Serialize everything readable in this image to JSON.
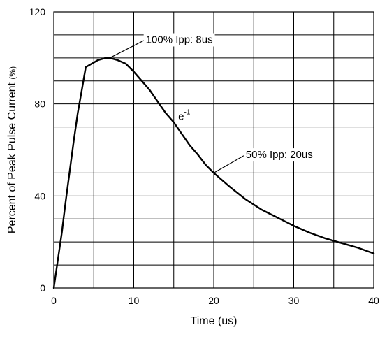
{
  "chart_data": {
    "type": "line",
    "xlabel": "Time (us)",
    "ylabel": "Percent of Peak Pulse Current",
    "ylabel_unit": "(%)",
    "xlim": [
      0,
      40
    ],
    "ylim": [
      0,
      120
    ],
    "xticks": [
      0,
      10,
      20,
      30,
      40
    ],
    "yticks": [
      0,
      40,
      80,
      120
    ],
    "grid": true,
    "x_grid_step": 5,
    "y_grid_step": 10,
    "series": [
      {
        "x": [
          0,
          0.5,
          1,
          1.5,
          2,
          2.5,
          3,
          3.5,
          4,
          4.5,
          5,
          5.5,
          6,
          6.5,
          7,
          7.5,
          8,
          9,
          10,
          11,
          12,
          13,
          14,
          15,
          16,
          17,
          18,
          19,
          20,
          22,
          24,
          26,
          28,
          30,
          32,
          34,
          36,
          38,
          40
        ],
        "y": [
          0,
          12,
          24,
          38,
          51,
          64,
          76,
          86,
          96,
          97,
          98,
          99,
          99.5,
          100,
          100,
          99.5,
          99,
          97.5,
          94,
          90,
          86,
          81,
          76,
          72,
          67,
          62,
          58,
          53.5,
          50,
          44,
          38.5,
          34,
          30.5,
          27,
          24,
          21.5,
          19.5,
          17.5,
          15
        ]
      }
    ],
    "annotations": [
      {
        "text": "100% Ipp: 8us",
        "point": [
          7,
          100
        ],
        "label_at": [
          11.5,
          108
        ]
      },
      {
        "text": "e",
        "superscript": "-1",
        "point": [
          16,
          72
        ],
        "label_at": [
          15.3,
          73
        ]
      },
      {
        "text": "50% Ipp: 20us",
        "point": [
          20,
          50
        ],
        "label_at": [
          24,
          58
        ]
      }
    ]
  }
}
